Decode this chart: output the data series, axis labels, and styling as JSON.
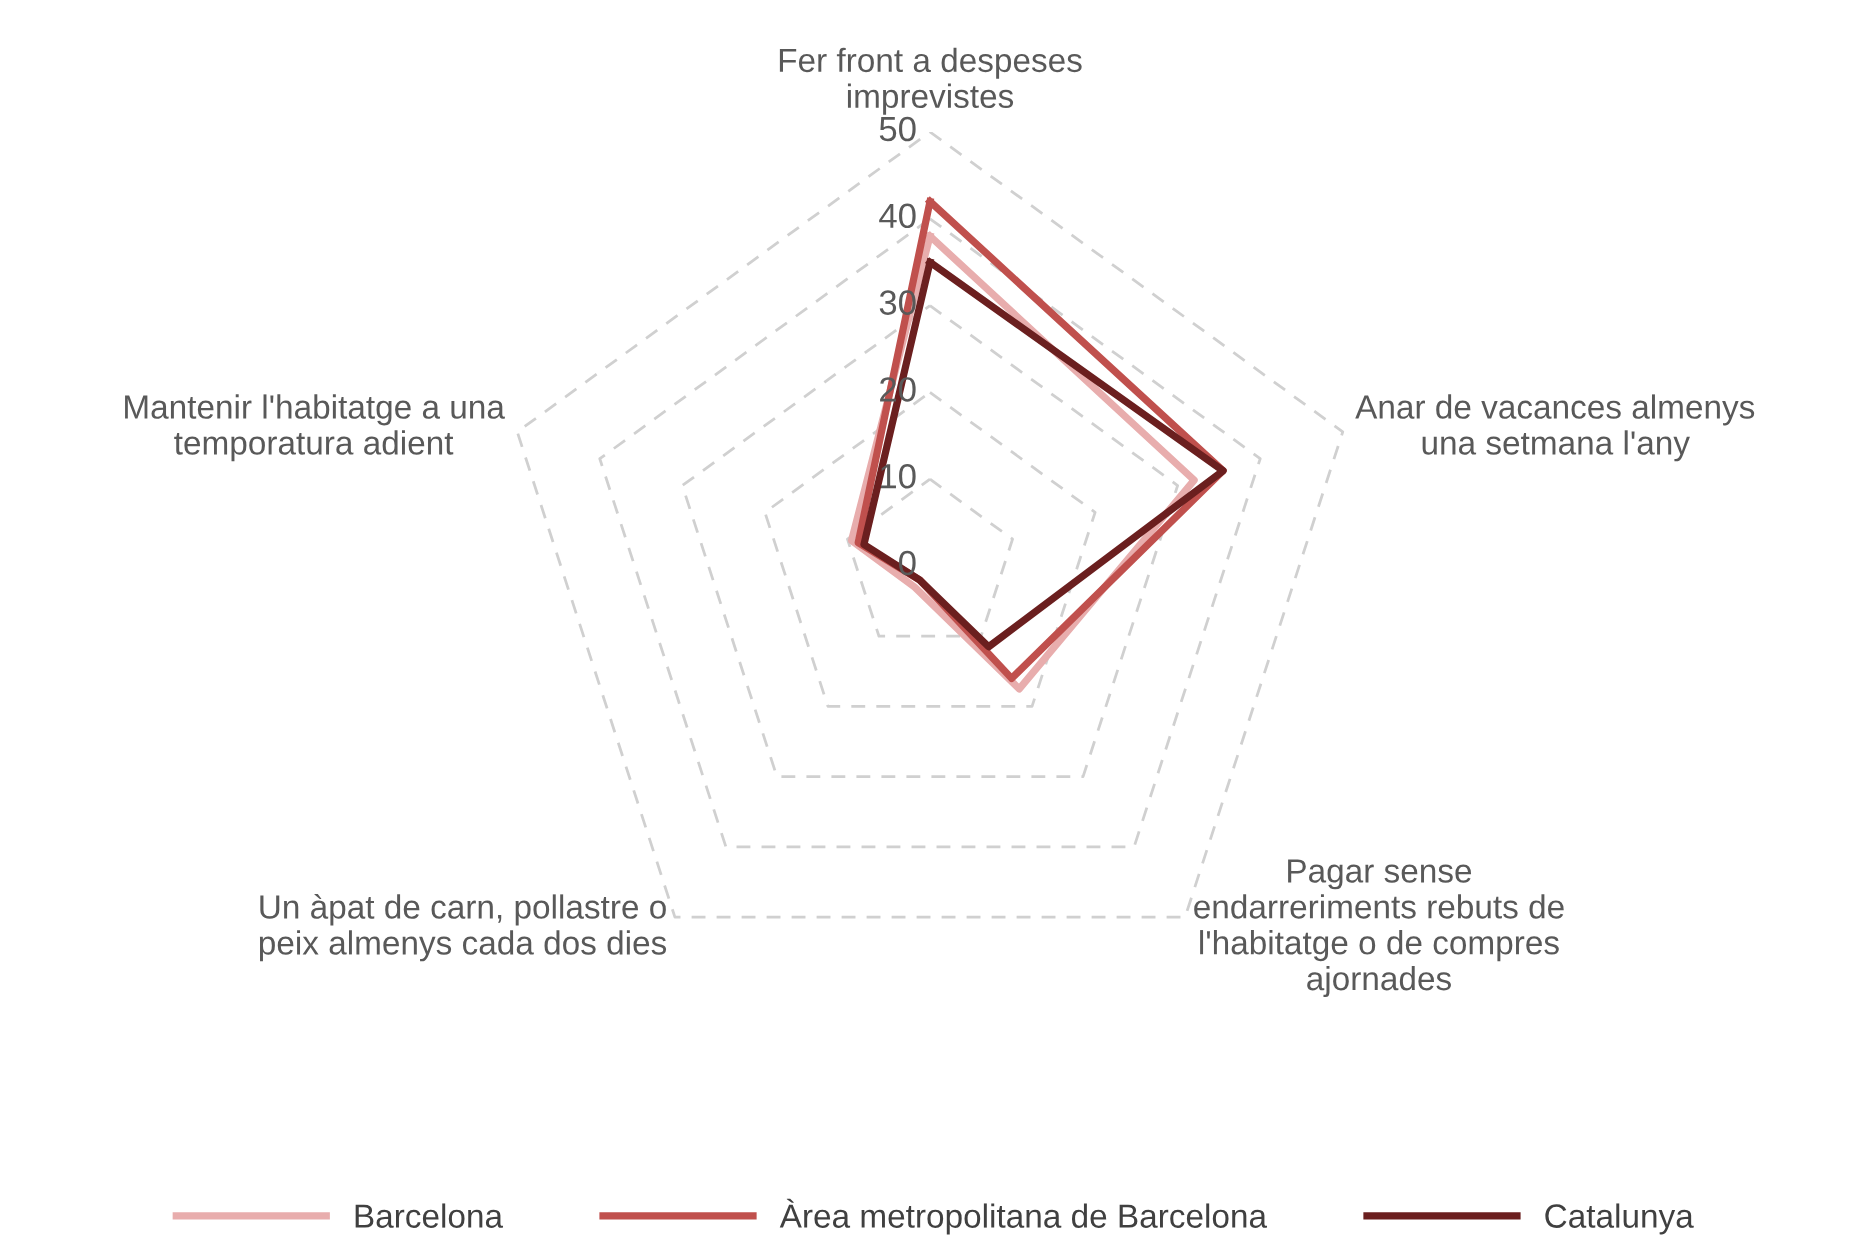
{
  "chart_data": {
    "type": "radar",
    "categories": [
      "Fer front a despeses\nimprevistes",
      "Anar de vacances almenys\nuna setmana l'any",
      "Pagar sense\nendarreriments rebuts de\nl'habitatge o de compres\najornades",
      "Un àpat de carn, pollastre o\npeix almenys cada dos dies",
      "Mantenir l'habitatge a una\ntemporatura adient"
    ],
    "series": [
      {
        "name": "Barcelona",
        "color": "#e8adad",
        "values": [
          38,
          32,
          17.5,
          3,
          9.5
        ]
      },
      {
        "name": "Àrea metropolitana de Barcelona",
        "color": "#c0504d",
        "values": [
          42,
          35.5,
          16,
          2,
          8.7
        ]
      },
      {
        "name": "Catalunya",
        "color": "#6b1f1f",
        "values": [
          35,
          35.5,
          11.5,
          2,
          8
        ]
      }
    ],
    "ylim": [
      0,
      50
    ],
    "yticks": [
      0,
      10,
      20,
      30,
      40,
      50
    ],
    "grid": true,
    "legend": "bottom",
    "line_style": "solid"
  }
}
